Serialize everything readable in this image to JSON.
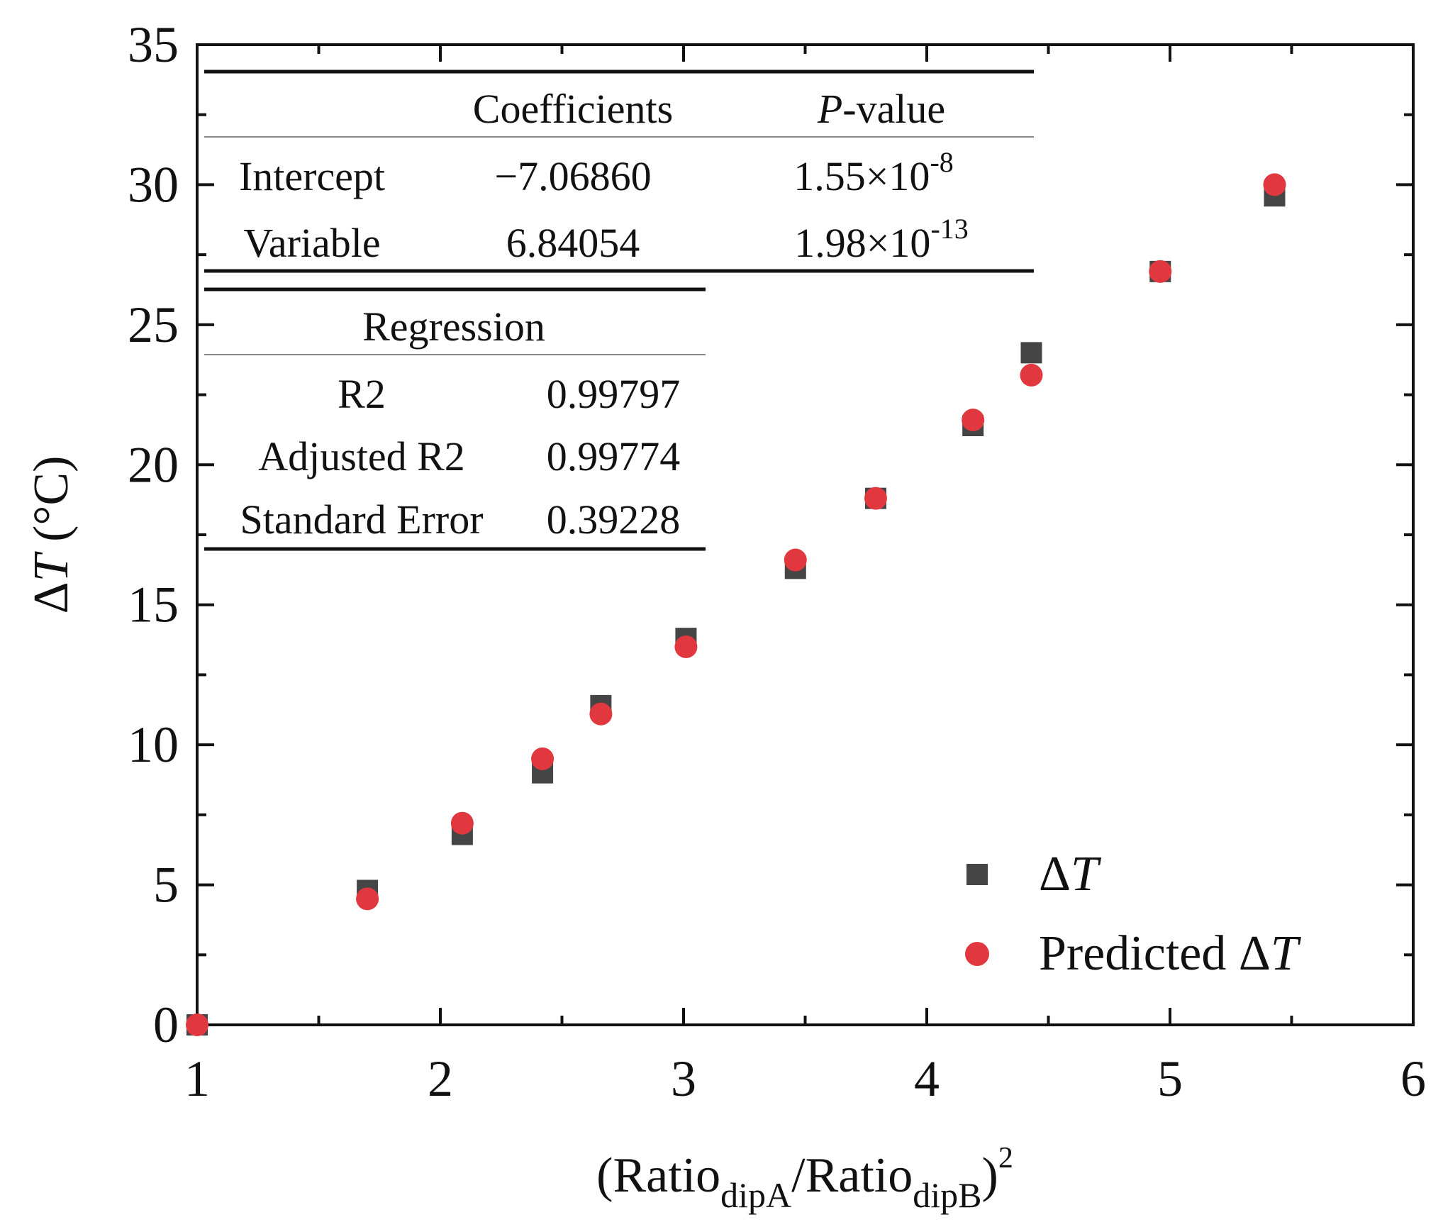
{
  "chart_data": {
    "type": "scatter",
    "xlabel": {
      "main": "(Ratio",
      "sub1": "dipA",
      "mid": "/Ratio",
      "sub2": "dipB",
      "close": ")",
      "sup": "2"
    },
    "ylabel": {
      "prefix": "Δ",
      "var": "T",
      "suffix": " (°C)"
    },
    "xlim": [
      1,
      6
    ],
    "ylim": [
      0,
      35
    ],
    "x_ticks": [
      "1",
      "2",
      "3",
      "4",
      "5",
      "6"
    ],
    "y_ticks": [
      "0",
      "5",
      "10",
      "15",
      "20",
      "25",
      "30",
      "35"
    ],
    "series": [
      {
        "name": "ΔT",
        "marker": "square",
        "color": "#454545",
        "x": [
          1.0,
          1.7,
          2.09,
          2.42,
          2.66,
          3.01,
          3.46,
          3.79,
          4.19,
          4.43,
          4.96,
          5.43
        ],
        "y": [
          0.0,
          4.8,
          6.8,
          9.0,
          11.4,
          13.8,
          16.3,
          18.8,
          21.4,
          24.0,
          26.9,
          29.6
        ]
      },
      {
        "name": "Predicted ΔT",
        "marker": "circle",
        "color": "#e0383e",
        "x": [
          1.0,
          1.7,
          2.09,
          2.42,
          2.66,
          3.01,
          3.46,
          3.79,
          4.19,
          4.43,
          4.96,
          5.43
        ],
        "y": [
          0.0,
          4.5,
          7.2,
          9.5,
          11.1,
          13.5,
          16.6,
          18.8,
          21.6,
          23.2,
          26.9,
          30.0
        ]
      }
    ],
    "legend": {
      "position": "bottom-right",
      "items": [
        {
          "prefix": "Δ",
          "var": "T"
        },
        {
          "prefix": "Predicted Δ",
          "var": "T"
        }
      ]
    },
    "coefficients_table": {
      "headers": [
        "",
        "Coefficients",
        "P",
        "-value"
      ],
      "rows": [
        {
          "label": "Intercept",
          "coef": "−7.06860",
          "p_base": "1.55×10",
          "p_exp": "-8"
        },
        {
          "label": "Variable",
          "coef": "6.84054",
          "p_base": "1.98×10",
          "p_exp": "-13"
        }
      ]
    },
    "regression_table": {
      "title": "Regression",
      "rows": [
        {
          "label": "R2",
          "value": "0.99797"
        },
        {
          "label": "Adjusted R2",
          "value": "0.99774"
        },
        {
          "label": "Standard Error",
          "value": "0.39228"
        }
      ]
    }
  }
}
